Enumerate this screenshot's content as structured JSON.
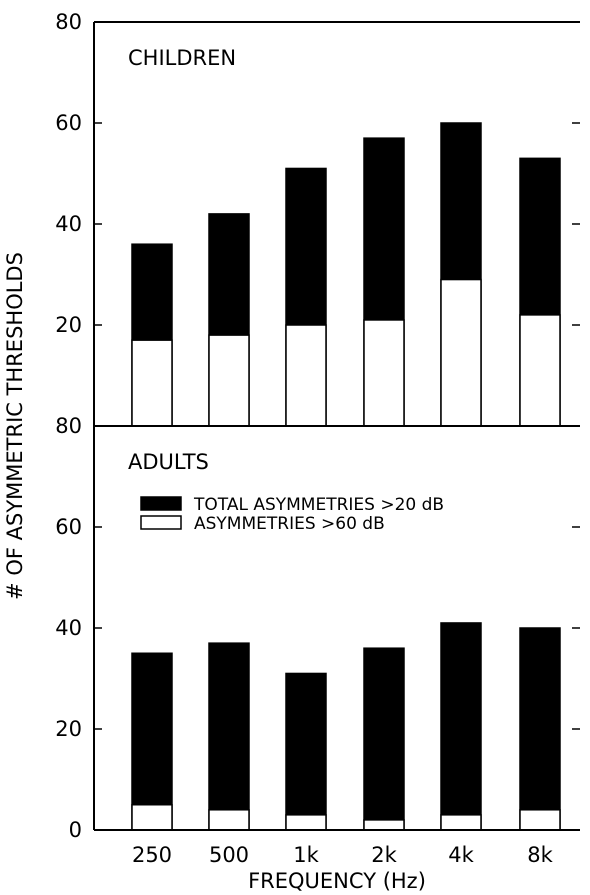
{
  "chart_data": [
    {
      "type": "bar",
      "stacked": "overlaid",
      "panel_label": "CHILDREN",
      "categories": [
        "250",
        "500",
        "1k",
        "2k",
        "4k",
        "8k"
      ],
      "series": [
        {
          "name": "TOTAL ASYMMETRIES >20 dB",
          "color": "#000000",
          "values": [
            36,
            42,
            51,
            57,
            60,
            53
          ]
        },
        {
          "name": "ASYMMETRIES >60 dB",
          "color": "#ffffff",
          "values": [
            17,
            18,
            20,
            21,
            29,
            22
          ]
        }
      ],
      "ylim": [
        0,
        80
      ],
      "yticks": [
        "20",
        "40",
        "60",
        "80"
      ],
      "legend": false
    },
    {
      "type": "bar",
      "stacked": "overlaid",
      "panel_label": "ADULTS",
      "categories": [
        "250",
        "500",
        "1k",
        "2k",
        "4k",
        "8k"
      ],
      "series": [
        {
          "name": "TOTAL ASYMMETRIES >20 dB",
          "color": "#000000",
          "values": [
            35,
            37,
            31,
            36,
            41,
            40
          ]
        },
        {
          "name": "ASYMMETRIES >60 dB",
          "color": "#ffffff",
          "values": [
            5,
            4,
            3,
            2,
            3,
            4
          ]
        }
      ],
      "ylim": [
        0,
        80
      ],
      "yticks": [
        "0",
        "20",
        "40",
        "60",
        "80"
      ],
      "legend": true,
      "legend_position": "top-left"
    }
  ],
  "labels": {
    "ylabel": "# OF ASYMMETRIC THRESHOLDS",
    "xlabel": "FREQUENCY (Hz)"
  }
}
